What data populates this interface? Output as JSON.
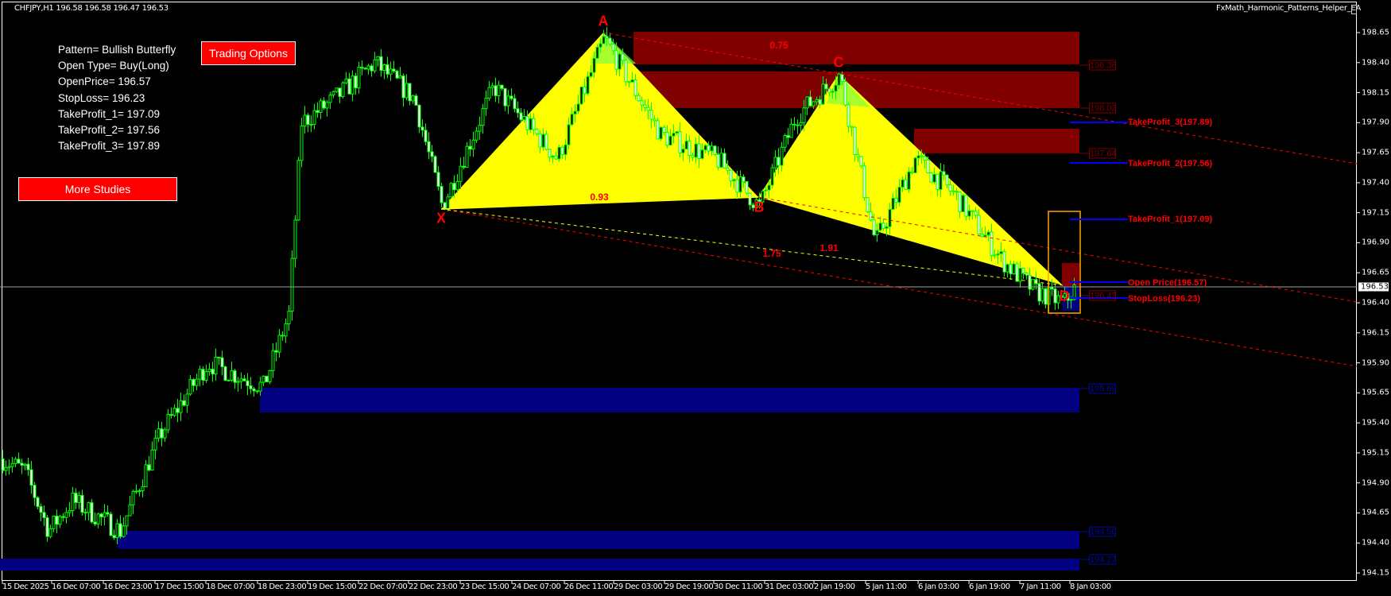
{
  "header": {
    "symbol_line": "CHFJPY,H1  196.58 196.58 196.47 196.53",
    "ea_name": "FxMath_Harmonic_Patterns_Helper_EA"
  },
  "info_panel": {
    "lines": [
      "Pattern= Bullish Butterfly",
      "Open Type= Buy(Long)",
      "OpenPrice= 196.57",
      "StopLoss= 196.23",
      "TakeProfit_1= 197.09",
      "TakeProfit_2= 197.56",
      "TakeProfit_3= 197.89"
    ]
  },
  "buttons": {
    "trading_options": "Trading Options",
    "more_studies": "More Studies"
  },
  "pattern": {
    "points": {
      "X": "X",
      "A": "A",
      "B": "B",
      "C": "C",
      "D": "D"
    },
    "ratios": {
      "xab": "0.93",
      "abc": "0.75",
      "bcd": "1.91",
      "xad": "1.75"
    }
  },
  "levels": {
    "tp3": "TakeProfit_3(197.89)",
    "tp2": "TakeProfit_2(197.56)",
    "tp1": "TakeProfit_1(197.09)",
    "open": "Open Price(196.57)",
    "sl": "StopLoss(196.23)"
  },
  "zones": {
    "supply": [
      "198.38",
      "198.02",
      "197.64",
      "196.47"
    ],
    "demand": [
      "195.69",
      "194.50",
      "194.27"
    ]
  },
  "price_axis": {
    "ticks": [
      "198.65",
      "198.40",
      "198.15",
      "197.90",
      "197.65",
      "197.40",
      "197.15",
      "196.90",
      "196.65",
      "196.40",
      "196.15",
      "195.90",
      "195.65",
      "195.40",
      "195.15",
      "194.90",
      "194.65",
      "194.40",
      "194.15"
    ],
    "current": "196.53"
  },
  "time_axis": {
    "ticks": [
      "15 Dec 2025",
      "16 Dec 07:00",
      "16 Dec 23:00",
      "17 Dec 15:00",
      "18 Dec 07:00",
      "18 Dec 23:00",
      "19 Dec 15:00",
      "22 Dec 07:00",
      "22 Dec 23:00",
      "23 Dec 15:00",
      "24 Dec 07:00",
      "26 Dec 11:00",
      "29 Dec 03:00",
      "29 Dec 19:00",
      "30 Dec 11:00",
      "31 Dec 03:00",
      "2 Jan 19:00",
      "5 Jan 11:00",
      "6 Jan 03:00",
      "6 Jan 19:00",
      "7 Jan 11:00",
      "8 Jan 03:00"
    ]
  },
  "colors": {
    "background": "#000000",
    "bull_candle": "#00ff00",
    "pattern_fill": "#ffff00",
    "supply_zone": "#800000",
    "demand_zone": "#000080",
    "level_line": "#0000ff",
    "label_red": "#ff0000"
  }
}
